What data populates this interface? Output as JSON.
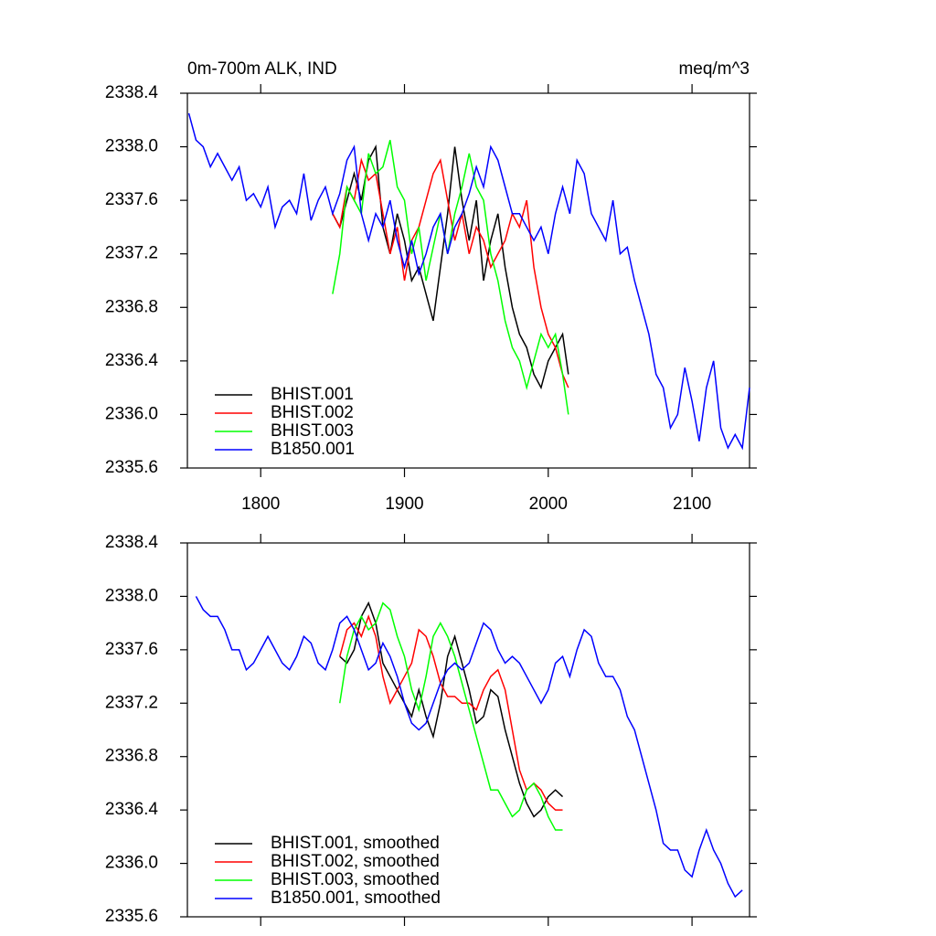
{
  "chart_data": [
    {
      "type": "line",
      "title": "0m-700m ALK, IND",
      "units": "meq/m^3",
      "xlim": [
        1749,
        2140
      ],
      "xticks": [
        1800,
        1900,
        2000,
        2100
      ],
      "xtick_labels": true,
      "ylim": [
        2335.6,
        2338.4
      ],
      "yticks": [
        2335.6,
        {
          "value": 2336,
          "label": "2336.0"
        },
        2336.4,
        2336.8,
        2337.2,
        2337.6,
        {
          "value": 2338,
          "label": "2338.0"
        },
        2338.4
      ],
      "legend": "lower left",
      "series": [
        {
          "name": "BHIST.001",
          "color": "#000000",
          "x": [
            1850,
            1855,
            1860,
            1865,
            1870,
            1875,
            1880,
            1885,
            1890,
            1895,
            1900,
            1905,
            1910,
            1915,
            1920,
            1925,
            1930,
            1935,
            1940,
            1945,
            1950,
            1955,
            1960,
            1965,
            1970,
            1975,
            1980,
            1985,
            1990,
            1995,
            2000,
            2005,
            2010,
            2014
          ],
          "values": [
            2337.5,
            2337.4,
            2337.6,
            2337.8,
            2337.6,
            2337.9,
            2338.0,
            2337.4,
            2337.2,
            2337.5,
            2337.3,
            2337.0,
            2337.1,
            2336.9,
            2336.7,
            2337.1,
            2337.5,
            2338.0,
            2337.6,
            2337.3,
            2337.6,
            2337.0,
            2337.3,
            2337.5,
            2337.1,
            2336.8,
            2336.6,
            2336.5,
            2336.3,
            2336.2,
            2336.4,
            2336.5,
            2336.6,
            2336.3
          ]
        },
        {
          "name": "BHIST.002",
          "color": "#ff0000",
          "x": [
            1850,
            1855,
            1860,
            1865,
            1870,
            1875,
            1880,
            1885,
            1890,
            1895,
            1900,
            1905,
            1910,
            1915,
            1920,
            1925,
            1930,
            1935,
            1940,
            1945,
            1950,
            1955,
            1960,
            1965,
            1970,
            1975,
            1980,
            1985,
            1990,
            1995,
            2000,
            2005,
            2010,
            2014
          ],
          "values": [
            2337.5,
            2337.4,
            2337.7,
            2337.6,
            2337.9,
            2337.75,
            2337.8,
            2337.5,
            2337.2,
            2337.4,
            2337.0,
            2337.3,
            2337.4,
            2337.6,
            2337.8,
            2337.9,
            2337.6,
            2337.3,
            2337.5,
            2337.2,
            2337.4,
            2337.3,
            2337.1,
            2337.2,
            2337.3,
            2337.5,
            2337.4,
            2337.6,
            2337.1,
            2336.8,
            2336.6,
            2336.5,
            2336.3,
            2336.2
          ]
        },
        {
          "name": "BHIST.003",
          "color": "#00ff00",
          "x": [
            1850,
            1855,
            1860,
            1865,
            1870,
            1875,
            1880,
            1885,
            1890,
            1895,
            1900,
            1905,
            1910,
            1915,
            1920,
            1925,
            1930,
            1935,
            1940,
            1945,
            1950,
            1955,
            1960,
            1965,
            1970,
            1975,
            1980,
            1985,
            1990,
            1995,
            2000,
            2005,
            2010,
            2014
          ],
          "values": [
            2336.9,
            2337.2,
            2337.7,
            2337.6,
            2337.5,
            2337.95,
            2337.8,
            2337.85,
            2338.05,
            2337.7,
            2337.6,
            2337.2,
            2337.4,
            2337.0,
            2337.25,
            2337.5,
            2337.2,
            2337.5,
            2337.7,
            2337.95,
            2337.7,
            2337.6,
            2337.2,
            2337.0,
            2336.7,
            2336.5,
            2336.4,
            2336.2,
            2336.4,
            2336.6,
            2336.5,
            2336.6,
            2336.3,
            2336.0
          ]
        },
        {
          "name": "B1850.001",
          "color": "#0000ff",
          "x": [
            1750,
            1755,
            1760,
            1765,
            1770,
            1775,
            1780,
            1785,
            1790,
            1795,
            1800,
            1805,
            1810,
            1815,
            1820,
            1825,
            1830,
            1835,
            1840,
            1845,
            1850,
            1855,
            1860,
            1865,
            1870,
            1875,
            1880,
            1885,
            1890,
            1895,
            1900,
            1905,
            1910,
            1915,
            1920,
            1925,
            1930,
            1935,
            1940,
            1945,
            1950,
            1955,
            1960,
            1965,
            1970,
            1975,
            1980,
            1985,
            1990,
            1995,
            2000,
            2005,
            2010,
            2015,
            2020,
            2025,
            2030,
            2035,
            2040,
            2045,
            2050,
            2055,
            2060,
            2065,
            2070,
            2075,
            2080,
            2085,
            2090,
            2095,
            2100,
            2105,
            2110,
            2115,
            2120,
            2125,
            2130,
            2135,
            2140
          ],
          "values": [
            2338.25,
            2338.05,
            2338.0,
            2337.85,
            2337.95,
            2337.85,
            2337.75,
            2337.85,
            2337.6,
            2337.65,
            2337.55,
            2337.7,
            2337.4,
            2337.55,
            2337.6,
            2337.5,
            2337.8,
            2337.45,
            2337.6,
            2337.7,
            2337.5,
            2337.65,
            2337.9,
            2338.0,
            2337.5,
            2337.3,
            2337.5,
            2337.4,
            2337.6,
            2337.3,
            2337.1,
            2337.3,
            2337.05,
            2337.2,
            2337.4,
            2337.5,
            2337.2,
            2337.4,
            2337.5,
            2337.65,
            2337.85,
            2337.7,
            2338.0,
            2337.9,
            2337.7,
            2337.5,
            2337.5,
            2337.4,
            2337.3,
            2337.4,
            2337.2,
            2337.5,
            2337.7,
            2337.5,
            2337.9,
            2337.8,
            2337.5,
            2337.4,
            2337.3,
            2337.6,
            2337.2,
            2337.25,
            2337.0,
            2336.8,
            2336.6,
            2336.3,
            2336.2,
            2335.9,
            2336.0,
            2336.35,
            2336.1,
            2335.8,
            2336.2,
            2336.4,
            2335.9,
            2335.75,
            2335.85,
            2335.75,
            2336.2
          ]
        }
      ]
    },
    {
      "type": "line",
      "xlim": [
        1749,
        2140
      ],
      "xticks": [
        1800,
        1900,
        2000,
        2100
      ],
      "xtick_labels": false,
      "ylim": [
        2335.6,
        2338.4
      ],
      "yticks": [
        2335.6,
        {
          "value": 2336,
          "label": "2336.0"
        },
        2336.4,
        2336.8,
        2337.2,
        2337.6,
        {
          "value": 2338,
          "label": "2338.0"
        },
        2338.4
      ],
      "legend": "lower left",
      "series": [
        {
          "name": "BHIST.001, smoothed",
          "color": "#000000",
          "x": [
            1855,
            1860,
            1865,
            1870,
            1875,
            1880,
            1885,
            1890,
            1895,
            1900,
            1905,
            1910,
            1915,
            1920,
            1925,
            1930,
            1935,
            1940,
            1945,
            1950,
            1955,
            1960,
            1965,
            1970,
            1975,
            1980,
            1985,
            1990,
            1995,
            2000,
            2005,
            2010
          ],
          "values": [
            2337.55,
            2337.5,
            2337.6,
            2337.85,
            2337.95,
            2337.8,
            2337.5,
            2337.4,
            2337.3,
            2337.2,
            2337.1,
            2337.3,
            2337.1,
            2336.95,
            2337.2,
            2337.55,
            2337.7,
            2337.5,
            2337.3,
            2337.05,
            2337.1,
            2337.3,
            2337.25,
            2337.0,
            2336.8,
            2336.6,
            2336.45,
            2336.35,
            2336.4,
            2336.5,
            2336.55,
            2336.5
          ]
        },
        {
          "name": "BHIST.002, smoothed",
          "color": "#ff0000",
          "x": [
            1855,
            1860,
            1865,
            1870,
            1875,
            1880,
            1885,
            1890,
            1895,
            1900,
            1905,
            1910,
            1915,
            1920,
            1925,
            1930,
            1935,
            1940,
            1945,
            1950,
            1955,
            1960,
            1965,
            1970,
            1975,
            1980,
            1985,
            1990,
            1995,
            2000,
            2005,
            2010
          ],
          "values": [
            2337.55,
            2337.75,
            2337.8,
            2337.7,
            2337.85,
            2337.7,
            2337.4,
            2337.2,
            2337.3,
            2337.4,
            2337.5,
            2337.75,
            2337.7,
            2337.55,
            2337.35,
            2337.25,
            2337.25,
            2337.2,
            2337.2,
            2337.15,
            2337.3,
            2337.4,
            2337.45,
            2337.3,
            2337.0,
            2336.7,
            2336.55,
            2336.6,
            2336.55,
            2336.45,
            2336.4,
            2336.4
          ]
        },
        {
          "name": "BHIST.003, smoothed",
          "color": "#00ff00",
          "x": [
            1855,
            1860,
            1865,
            1870,
            1875,
            1880,
            1885,
            1890,
            1895,
            1900,
            1905,
            1910,
            1915,
            1920,
            1925,
            1930,
            1935,
            1940,
            1945,
            1950,
            1955,
            1960,
            1965,
            1970,
            1975,
            1980,
            1985,
            1990,
            1995,
            2000,
            2005,
            2010
          ],
          "values": [
            2337.2,
            2337.55,
            2337.75,
            2337.85,
            2337.75,
            2337.8,
            2337.95,
            2337.9,
            2337.7,
            2337.55,
            2337.3,
            2337.15,
            2337.4,
            2337.7,
            2337.8,
            2337.7,
            2337.55,
            2337.35,
            2337.15,
            2336.95,
            2336.75,
            2336.55,
            2336.55,
            2336.45,
            2336.35,
            2336.4,
            2336.55,
            2336.6,
            2336.5,
            2336.35,
            2336.25,
            2336.25
          ]
        },
        {
          "name": "B1850.001, smoothed",
          "color": "#0000ff",
          "x": [
            1755,
            1760,
            1765,
            1770,
            1775,
            1780,
            1785,
            1790,
            1795,
            1800,
            1805,
            1810,
            1815,
            1820,
            1825,
            1830,
            1835,
            1840,
            1845,
            1850,
            1855,
            1860,
            1865,
            1870,
            1875,
            1880,
            1885,
            1890,
            1895,
            1900,
            1905,
            1910,
            1915,
            1920,
            1925,
            1930,
            1935,
            1940,
            1945,
            1950,
            1955,
            1960,
            1965,
            1970,
            1975,
            1980,
            1985,
            1990,
            1995,
            2000,
            2005,
            2010,
            2015,
            2020,
            2025,
            2030,
            2035,
            2040,
            2045,
            2050,
            2055,
            2060,
            2065,
            2070,
            2075,
            2080,
            2085,
            2090,
            2095,
            2100,
            2105,
            2110,
            2115,
            2120,
            2125,
            2130,
            2135
          ],
          "values": [
            2338.0,
            2337.9,
            2337.85,
            2337.85,
            2337.75,
            2337.6,
            2337.6,
            2337.45,
            2337.5,
            2337.6,
            2337.7,
            2337.6,
            2337.5,
            2337.45,
            2337.55,
            2337.7,
            2337.65,
            2337.5,
            2337.45,
            2337.6,
            2337.8,
            2337.85,
            2337.75,
            2337.6,
            2337.45,
            2337.5,
            2337.65,
            2337.55,
            2337.4,
            2337.2,
            2337.05,
            2337.0,
            2337.05,
            2337.2,
            2337.35,
            2337.45,
            2337.5,
            2337.45,
            2337.5,
            2337.65,
            2337.8,
            2337.75,
            2337.6,
            2337.5,
            2337.55,
            2337.5,
            2337.4,
            2337.3,
            2337.2,
            2337.3,
            2337.5,
            2337.55,
            2337.4,
            2337.6,
            2337.75,
            2337.7,
            2337.5,
            2337.4,
            2337.4,
            2337.3,
            2337.1,
            2337.0,
            2336.8,
            2336.6,
            2336.4,
            2336.15,
            2336.1,
            2336.1,
            2335.95,
            2335.9,
            2336.1,
            2336.25,
            2336.1,
            2336.0,
            2335.85,
            2335.75,
            2335.8
          ]
        }
      ]
    }
  ]
}
